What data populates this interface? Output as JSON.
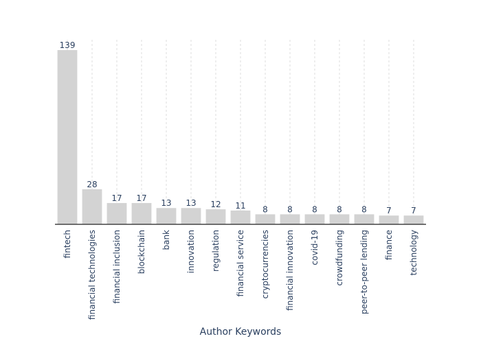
{
  "chart_data": {
    "type": "bar",
    "title": "",
    "xlabel": "Author Keywords",
    "ylabel": "",
    "ylim": [
      0,
      139
    ],
    "grid": "vertical dashed",
    "legend": "none",
    "bar_color": "#d3d3d3",
    "categories": [
      "fintech",
      "financial technologies",
      "financial inclusion",
      "blockchain",
      "bank",
      "innovation",
      "regulation",
      "financial service",
      "cryptocurrencies",
      "financial innovation",
      "covid-19",
      "crowdfunding",
      "peer-to-peer lending",
      "finance",
      "technology"
    ],
    "values": [
      139,
      28,
      17,
      17,
      13,
      13,
      12,
      11,
      8,
      8,
      8,
      8,
      8,
      7,
      7
    ]
  }
}
